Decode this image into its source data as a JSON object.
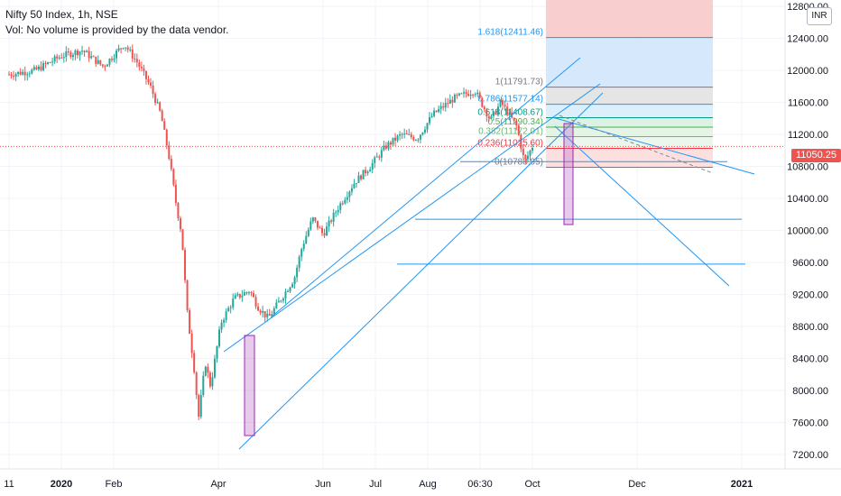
{
  "header": {
    "title": "Nifty 50 Index, 1h, NSE",
    "volume_note": "Vol: No volume is provided by the data vendor.",
    "currency": "INR"
  },
  "last_price": {
    "label": "11050.25",
    "value": 11050.25,
    "color": "#ef5350"
  },
  "chart_data": {
    "type": "candlestick",
    "title": "Nifty 50 Index, 1h, NSE",
    "y_axis": {
      "ticks": [
        "7200.00",
        "7600.00",
        "8000.00",
        "8400.00",
        "8800.00",
        "9200.00",
        "9600.00",
        "10000.00",
        "10400.00",
        "10800.00",
        "11200.00",
        "11600.00",
        "12000.00",
        "12400.00",
        "12800.00"
      ],
      "range": [
        7020,
        12880
      ],
      "position": "right"
    },
    "x_axis": {
      "ticks": [
        {
          "label": "11",
          "bold": false,
          "month": 0
        },
        {
          "label": "2020",
          "bold": true,
          "month": 1
        },
        {
          "label": "Feb",
          "bold": false,
          "month": 2
        },
        {
          "label": "Apr",
          "bold": false,
          "month": 4
        },
        {
          "label": "Jun",
          "bold": false,
          "month": 6
        },
        {
          "label": "Jul",
          "bold": false,
          "month": 7
        },
        {
          "label": "Aug",
          "bold": false,
          "month": 8
        },
        {
          "label": "06:30",
          "bold": false,
          "month": 9
        },
        {
          "label": "Oct",
          "bold": false,
          "month": 10
        },
        {
          "label": "Dec",
          "bold": false,
          "month": 12
        },
        {
          "label": "2021",
          "bold": true,
          "month": 14
        }
      ]
    },
    "price_path": [
      [
        0.0,
        11950
      ],
      [
        0.5,
        12000
      ],
      [
        1.0,
        12180
      ],
      [
        1.4,
        12250
      ],
      [
        1.8,
        12050
      ],
      [
        2.2,
        12330
      ],
      [
        2.45,
        12100
      ],
      [
        2.7,
        11800
      ],
      [
        2.9,
        11450
      ],
      [
        3.05,
        10950
      ],
      [
        3.2,
        10300
      ],
      [
        3.3,
        9950
      ],
      [
        3.4,
        9000
      ],
      [
        3.55,
        8200
      ],
      [
        3.62,
        7650
      ],
      [
        3.75,
        8350
      ],
      [
        3.85,
        8050
      ],
      [
        4.05,
        8850
      ],
      [
        4.3,
        9150
      ],
      [
        4.6,
        9250
      ],
      [
        4.75,
        9050
      ],
      [
        4.95,
        8900
      ],
      [
        5.2,
        9150
      ],
      [
        5.45,
        9400
      ],
      [
        5.6,
        9800
      ],
      [
        5.8,
        10150
      ],
      [
        6.0,
        9950
      ],
      [
        6.3,
        10300
      ],
      [
        6.6,
        10600
      ],
      [
        6.9,
        10800
      ],
      [
        7.2,
        11050
      ],
      [
        7.5,
        11200
      ],
      [
        7.8,
        11150
      ],
      [
        8.1,
        11450
      ],
      [
        8.5,
        11650
      ],
      [
        8.9,
        11750
      ],
      [
        9.2,
        11380
      ],
      [
        9.4,
        11600
      ],
      [
        9.7,
        11300
      ],
      [
        9.85,
        10850
      ],
      [
        10.0,
        11050
      ]
    ],
    "annotations": {
      "fibonacci_levels": [
        {
          "ratio": "1.618",
          "price": 12411.46,
          "label": "1.618(12411.46)",
          "color": "#2196f3"
        },
        {
          "ratio": "1",
          "price": 11791.73,
          "label": "1(11791.73)",
          "color": "#787b86"
        },
        {
          "ratio": "0.786",
          "price": 11577.14,
          "label": "0.786(11577.14)",
          "color": "#2196f3"
        },
        {
          "ratio": "0.618",
          "price": 11408.67,
          "label": "0.618(11408.67)",
          "color": "#089981"
        },
        {
          "ratio": "0.5",
          "price": 11290.34,
          "label": "0.5(11290.34)",
          "color": "#4caf50"
        },
        {
          "ratio": "0.382",
          "price": 11172.01,
          "label": "0.382(11172.01)",
          "color": "#66bb6a"
        },
        {
          "ratio": "0.236",
          "price": 11025.6,
          "label": "0.236(11025.60)",
          "color": "#f23645"
        },
        {
          "ratio": "0",
          "price": 10788.95,
          "label": "0(10788.95)",
          "color": "#787b86"
        }
      ],
      "horizontal_levels": [
        10860,
        10140,
        9580
      ],
      "colors": {
        "trendline": "#2196f3",
        "highlight_box": "#9c27b0",
        "grid": "#f0f3fa",
        "axis_text": "#131722"
      }
    }
  }
}
